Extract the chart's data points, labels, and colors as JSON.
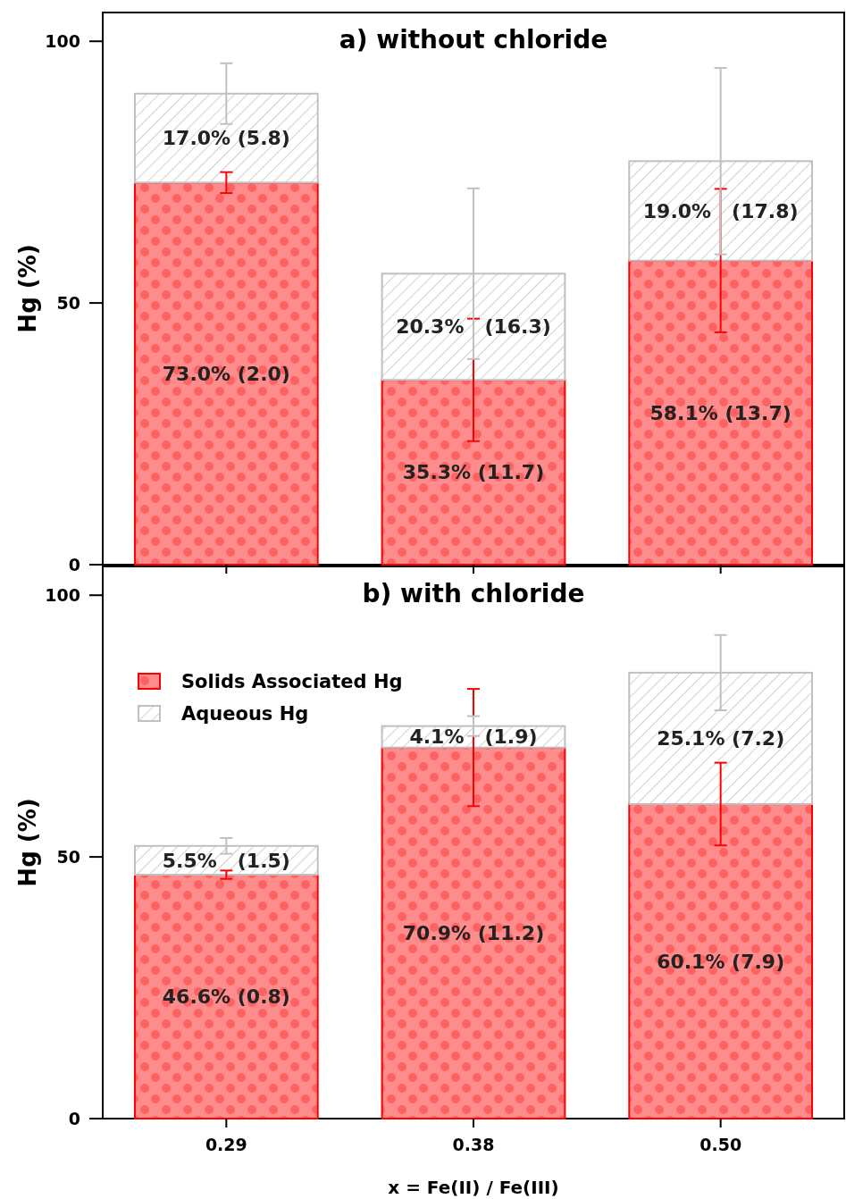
{
  "chart_data": [
    {
      "type": "bar",
      "title": "a) without chloride",
      "ylabel": "Hg (%)",
      "categories": [
        "0.29",
        "0.38",
        "0.50"
      ],
      "stacked": true,
      "ylim": [
        0,
        105.5
      ],
      "yticks": [
        0,
        50,
        100
      ],
      "tick_labels": "y",
      "grid": false,
      "legend": false,
      "series": [
        {
          "color": "#ff0000",
          "values": [
            73.0,
            35.3,
            58.1
          ],
          "errors": [
            2.0,
            11.7,
            13.7
          ],
          "value_labels": [
            "73.0% (2.0)",
            "35.3% (11.7)",
            "58.1% (13.7)"
          ]
        },
        {
          "color": "#c0c0c0",
          "values": [
            17.0,
            20.3,
            19.0
          ],
          "errors": [
            5.8,
            16.3,
            17.8
          ],
          "value_labels": [
            "17.0% (5.8)",
            "20.3%   (16.3)",
            "19.0%   (17.8)"
          ]
        }
      ]
    },
    {
      "type": "bar",
      "title": "b) with chloride",
      "ylabel": "Hg (%)",
      "xlabel": "x = Fe(II) / Fe(III)",
      "categories": [
        "0.29",
        "0.38",
        "0.50"
      ],
      "stacked": true,
      "ylim": [
        0,
        105.5
      ],
      "yticks": [
        0,
        50,
        100
      ],
      "grid": false,
      "legend": "top left",
      "series": [
        {
          "name": "Solids Associated Hg",
          "color": "#ff0000",
          "values": [
            46.6,
            70.9,
            60.1
          ],
          "errors": [
            0.8,
            11.2,
            7.9
          ],
          "value_labels": [
            "46.6% (0.8)",
            "70.9% (11.2)",
            "60.1% (7.9)"
          ]
        },
        {
          "name": "Aqueous Hg",
          "color": "#c0c0c0",
          "values": [
            5.5,
            4.1,
            25.1
          ],
          "errors": [
            1.5,
            1.9,
            7.2
          ],
          "value_labels": [
            "5.5%   (1.5)",
            "4.1%   (1.9)",
            "25.1% (7.2)"
          ]
        }
      ]
    }
  ]
}
